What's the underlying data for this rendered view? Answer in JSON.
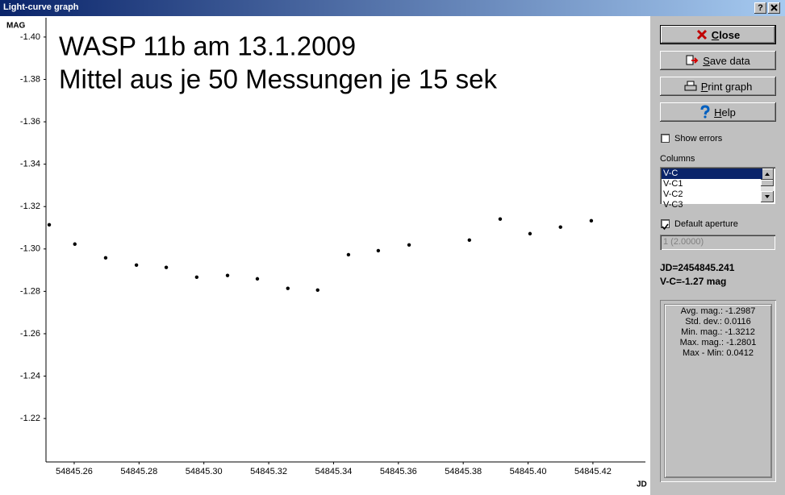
{
  "window": {
    "title": "Light-curve graph",
    "help_button": "?"
  },
  "chart_data": {
    "type": "scatter",
    "title": "WASP 11b am 13.1.2009",
    "subtitle": "Mittel aus je 50 Messungen je 15 sek",
    "y_label": "MAG",
    "x_label": "JD",
    "x": [
      54845.2523,
      54845.2602,
      54845.2697,
      54845.2792,
      54845.2884,
      54845.2978,
      54845.3073,
      54845.3165,
      54845.3259,
      54845.3351,
      54845.3446,
      54845.3538,
      54845.3633,
      54845.3819,
      54845.3914,
      54845.4006,
      54845.41,
      54845.4195
    ],
    "values": [
      -1.3114,
      -1.3023,
      -1.2958,
      -1.2924,
      -1.2913,
      -1.2867,
      -1.2875,
      -1.2859,
      -1.2814,
      -1.2806,
      -1.2973,
      -1.2992,
      -1.3019,
      -1.3042,
      -1.3141,
      -1.3072,
      -1.3103,
      -1.3133
    ],
    "color": "#000000",
    "xlim": [
      54845.2513,
      54845.4362
    ],
    "ylim": [
      -1.1995,
      -1.4091
    ],
    "xticks": [
      54845.26,
      54845.28,
      {
        "value": 54845.3,
        "label": "54845.30"
      },
      54845.32,
      54845.34,
      54845.36,
      54845.38,
      {
        "value": 54845.4,
        "label": "54845.40"
      },
      54845.42
    ],
    "yticks": [
      {
        "value": -1.4,
        "label": "-1.40"
      },
      -1.38,
      -1.36,
      -1.34,
      -1.32,
      {
        "value": -1.3,
        "label": "-1.30"
      },
      -1.28,
      -1.26,
      -1.24,
      -1.22
    ],
    "grid": false
  },
  "sidebar": {
    "buttons": [
      "Close",
      "Save data",
      "Print graph",
      "Help"
    ],
    "show_errors": {
      "label": "Show errors",
      "checked": false
    },
    "columns": {
      "label": "Columns",
      "items": [
        "V-C",
        "V-C1",
        "V-C2",
        "V-C3"
      ],
      "selected": 0
    },
    "default_aperture": {
      "label": "Default aperture",
      "checked": true
    },
    "aperture_select": "1 (2.0000)",
    "info": [
      "JD=2454845.241",
      "V-C=-1.27 mag"
    ],
    "stats": [
      "Avg. mag.: -1.2987",
      "Std. dev.: 0.0116",
      "Min. mag.: -1.3212",
      "Max. mag.: -1.2801",
      "Max - Min: 0.0412"
    ]
  }
}
